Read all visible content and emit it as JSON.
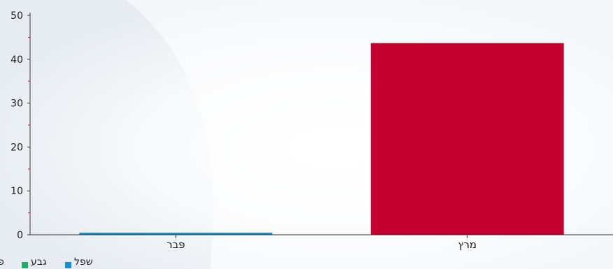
{
  "chart_data": {
    "type": "bar",
    "categories": [
      "פּבר",
      "מרץ"
    ],
    "series": [
      {
        "name": "שפל",
        "color": "#1a8fd0",
        "values": [
          0.4,
          0
        ]
      },
      {
        "name": "גבע",
        "color": "#22aa66",
        "values": [
          0,
          0
        ]
      },
      {
        "name": "פי",
        "color": "#c3002f",
        "values": [
          0,
          43.6
        ]
      }
    ],
    "bar_colors": [
      "#1a8fd0",
      "#c3002f"
    ],
    "bar_values": [
      0.4,
      43.6
    ],
    "yticks": [
      "0",
      "10",
      "20",
      "30",
      "40",
      "50"
    ],
    "ylim": [
      0,
      50
    ],
    "grid": false,
    "legend": "bottom-left"
  }
}
